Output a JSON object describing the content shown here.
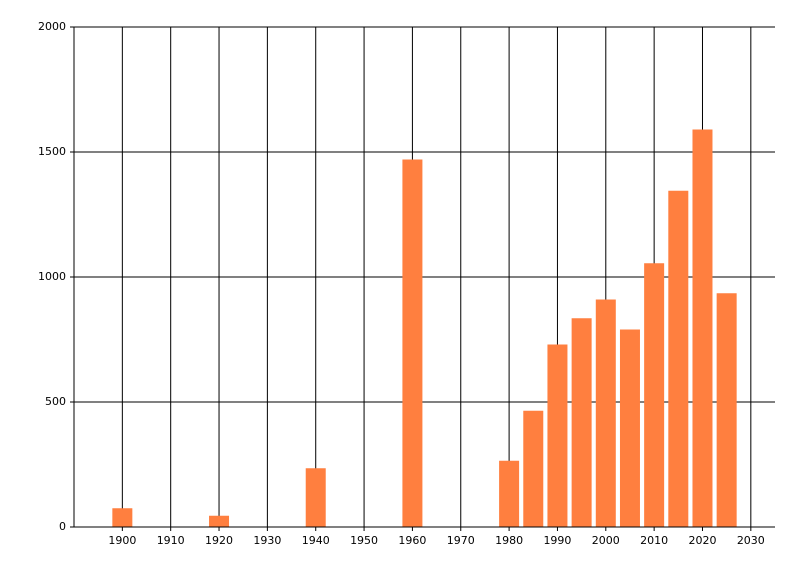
{
  "chart_data": {
    "type": "bar",
    "x": [
      1900,
      1920,
      1940,
      1960,
      1980,
      1985,
      1990,
      1995,
      2000,
      2005,
      2010,
      2015,
      2020,
      2025
    ],
    "values": [
      75,
      45,
      235,
      1470,
      265,
      465,
      730,
      835,
      910,
      790,
      1055,
      1345,
      1590,
      935
    ],
    "color": "#ff7f3f",
    "xlim": [
      1890,
      2035
    ],
    "xticks": [
      1900,
      1910,
      1920,
      1930,
      1940,
      1950,
      1960,
      1970,
      1980,
      1990,
      2000,
      2010,
      2020,
      2030
    ],
    "ylim": [
      0,
      2000
    ],
    "yticks": [
      0,
      500,
      1000,
      1500,
      2000
    ],
    "grid": true
  }
}
